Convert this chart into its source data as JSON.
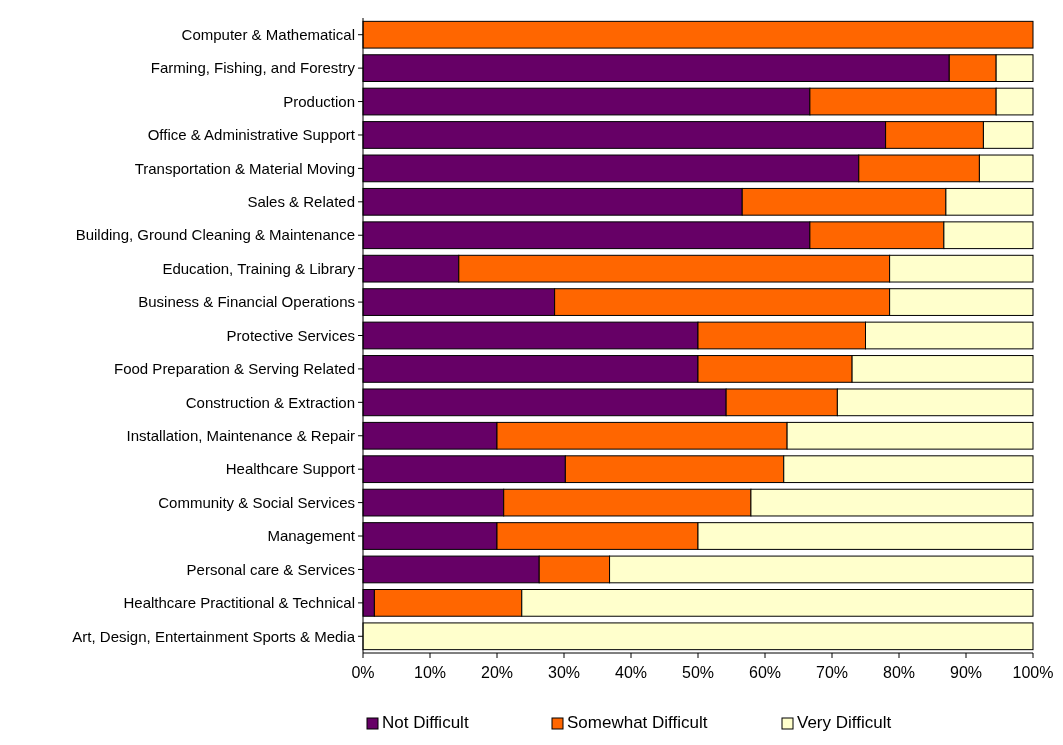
{
  "chart_data": {
    "type": "bar",
    "orientation": "horizontal",
    "stacked": true,
    "categories": [
      "Computer & Mathematical",
      "Farming, Fishing, and Forestry",
      "Production",
      "Office & Administrative Support",
      "Transportation & Material Moving",
      "Sales & Related",
      "Building, Ground Cleaning & Maintenance",
      "Education, Training & Library",
      "Business & Financial Operations",
      "Protective Services",
      "Food Preparation & Serving Related",
      "Construction & Extraction",
      "Installation, Maintenance & Repair",
      "Healthcare Support",
      "Community & Social Services",
      "Management",
      "Personal care & Services",
      "Healthcare Practitional & Technical",
      "Art, Design, Entertainment Sports & Media"
    ],
    "series": [
      {
        "name": "Not Difficult",
        "color": "#660066",
        "values": [
          0,
          87.5,
          66.7,
          78,
          74,
          56.6,
          66.7,
          14.3,
          28.6,
          50,
          50,
          54.2,
          20,
          30.2,
          21,
          20,
          26.3,
          1.7,
          0
        ]
      },
      {
        "name": "Somewhat Difficult",
        "color": "#ff6600",
        "values": [
          100,
          7,
          27.8,
          14.6,
          18,
          30.4,
          20,
          64.3,
          50,
          25,
          23,
          16.6,
          43.3,
          32.6,
          36.9,
          30,
          10.5,
          22,
          0
        ]
      },
      {
        "name": "Very Difficult",
        "color": "#ffffcc",
        "values": [
          0,
          5.5,
          5.5,
          7.4,
          8,
          13,
          13.3,
          21.4,
          21.4,
          25,
          27,
          29.2,
          36.7,
          37.2,
          42.1,
          50,
          63.2,
          76.3,
          100
        ]
      }
    ],
    "xlim": [
      0,
      100
    ],
    "xticks": [
      {
        "value": 0,
        "label": "0%"
      },
      {
        "value": 10,
        "label": "10%"
      },
      {
        "value": 20,
        "label": "20%"
      },
      {
        "value": 30,
        "label": "30%"
      },
      {
        "value": 40,
        "label": "40%"
      },
      {
        "value": 50,
        "label": "50%"
      },
      {
        "value": 60,
        "label": "60%"
      },
      {
        "value": 70,
        "label": "70%"
      },
      {
        "value": 80,
        "label": "80%"
      },
      {
        "value": 90,
        "label": "90%"
      },
      {
        "value": 100,
        "label": "100%"
      }
    ],
    "grid": false,
    "legend": "bottom"
  }
}
